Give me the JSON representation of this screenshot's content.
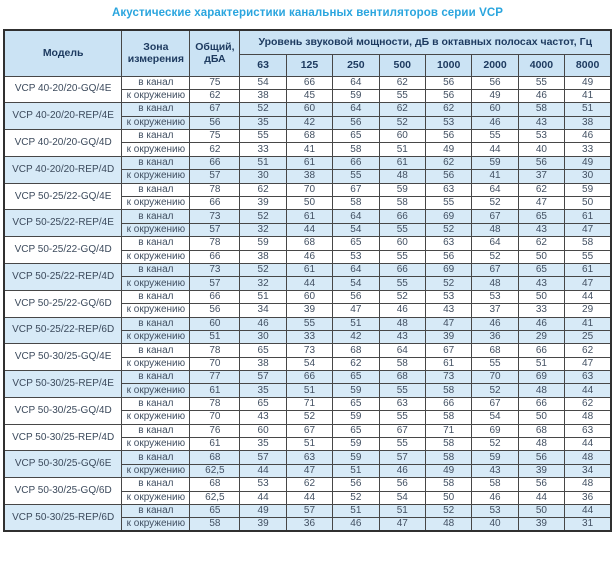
{
  "title": "Акустические характеристики канальных вентиляторов  серии VCP",
  "table": {
    "headers": {
      "model": "Модель",
      "zone": "Зона измерения",
      "total": "Общий, дБА",
      "octave": "Уровень звуковой мощности, дБ в октавных полосах частот, Гц",
      "frequencies": [
        "63",
        "125",
        "250",
        "500",
        "1000",
        "2000",
        "4000",
        "8000"
      ]
    },
    "colors": {
      "title_accent": "#2aa5de",
      "header_bg": "#cbe3f4",
      "shaded_row_bg": "#d7eaf7",
      "header_text": "#1d3a5f",
      "cell_text": "#425062"
    },
    "rows": [
      {
        "model": "VCP 40-20/20-GQ/4E",
        "shaded": false,
        "measurements": [
          {
            "zone": "в канал",
            "total": "75",
            "bands": [
              "54",
              "66",
              "64",
              "62",
              "56",
              "56",
              "55",
              "49"
            ]
          },
          {
            "zone": "к окружению",
            "total": "62",
            "bands": [
              "38",
              "45",
              "59",
              "55",
              "56",
              "49",
              "46",
              "41"
            ]
          }
        ]
      },
      {
        "model": "VCP 40-20/20-REP/4E",
        "shaded": true,
        "measurements": [
          {
            "zone": "в канал",
            "total": "67",
            "bands": [
              "52",
              "60",
              "64",
              "62",
              "62",
              "60",
              "58",
              "51"
            ]
          },
          {
            "zone": "к окружению",
            "total": "56",
            "bands": [
              "35",
              "42",
              "56",
              "52",
              "53",
              "46",
              "43",
              "38"
            ]
          }
        ]
      },
      {
        "model": "VCP 40-20/20-GQ/4D",
        "shaded": false,
        "measurements": [
          {
            "zone": "в канал",
            "total": "75",
            "bands": [
              "55",
              "68",
              "65",
              "60",
              "56",
              "55",
              "53",
              "46"
            ]
          },
          {
            "zone": "к окружению",
            "total": "62",
            "bands": [
              "33",
              "41",
              "58",
              "51",
              "49",
              "44",
              "40",
              "33"
            ]
          }
        ]
      },
      {
        "model": "VCP 40-20/20-REP/4D",
        "shaded": true,
        "measurements": [
          {
            "zone": "в канал",
            "total": "66",
            "bands": [
              "51",
              "61",
              "66",
              "61",
              "62",
              "59",
              "56",
              "49"
            ]
          },
          {
            "zone": "к окружению",
            "total": "57",
            "bands": [
              "30",
              "38",
              "55",
              "48",
              "56",
              "41",
              "37",
              "30"
            ]
          }
        ]
      },
      {
        "model": "VCP 50-25/22-GQ/4E",
        "shaded": false,
        "measurements": [
          {
            "zone": "в канал",
            "total": "78",
            "bands": [
              "62",
              "70",
              "67",
              "59",
              "63",
              "64",
              "62",
              "59"
            ]
          },
          {
            "zone": "к окружению",
            "total": "66",
            "bands": [
              "39",
              "50",
              "58",
              "58",
              "55",
              "52",
              "47",
              "50"
            ]
          }
        ]
      },
      {
        "model": "VCP 50-25/22-REP/4E",
        "shaded": true,
        "measurements": [
          {
            "zone": "в канал",
            "total": "73",
            "bands": [
              "52",
              "61",
              "64",
              "66",
              "69",
              "67",
              "65",
              "61"
            ]
          },
          {
            "zone": "к окружению",
            "total": "57",
            "bands": [
              "32",
              "44",
              "54",
              "55",
              "52",
              "48",
              "43",
              "47"
            ]
          }
        ]
      },
      {
        "model": "VCP 50-25/22-GQ/4D",
        "shaded": false,
        "measurements": [
          {
            "zone": "в канал",
            "total": "78",
            "bands": [
              "59",
              "68",
              "65",
              "60",
              "63",
              "64",
              "62",
              "58"
            ]
          },
          {
            "zone": "к окружению",
            "total": "66",
            "bands": [
              "38",
              "46",
              "53",
              "55",
              "56",
              "52",
              "50",
              "55"
            ]
          }
        ]
      },
      {
        "model": "VCP 50-25/22-REP/4D",
        "shaded": true,
        "measurements": [
          {
            "zone": "в канал",
            "total": "73",
            "bands": [
              "52",
              "61",
              "64",
              "66",
              "69",
              "67",
              "65",
              "61"
            ]
          },
          {
            "zone": "к окружению",
            "total": "57",
            "bands": [
              "32",
              "44",
              "54",
              "55",
              "52",
              "48",
              "43",
              "47"
            ]
          }
        ]
      },
      {
        "model": "VCP 50-25/22-GQ/6D",
        "shaded": false,
        "measurements": [
          {
            "zone": "в канал",
            "total": "66",
            "bands": [
              "51",
              "60",
              "56",
              "52",
              "53",
              "53",
              "50",
              "44"
            ]
          },
          {
            "zone": "к окружению",
            "total": "56",
            "bands": [
              "34",
              "39",
              "47",
              "46",
              "43",
              "37",
              "33",
              "29"
            ]
          }
        ]
      },
      {
        "model": "VCP 50-25/22-REP/6D",
        "shaded": true,
        "measurements": [
          {
            "zone": "в канал",
            "total": "60",
            "bands": [
              "46",
              "55",
              "51",
              "48",
              "47",
              "46",
              "46",
              "41"
            ]
          },
          {
            "zone": "к окружению",
            "total": "51",
            "bands": [
              "30",
              "33",
              "42",
              "43",
              "39",
              "36",
              "29",
              "25"
            ]
          }
        ]
      },
      {
        "model": "VCP 50-30/25-GQ/4E",
        "shaded": false,
        "measurements": [
          {
            "zone": "в канал",
            "total": "78",
            "bands": [
              "65",
              "73",
              "68",
              "64",
              "67",
              "68",
              "66",
              "62"
            ]
          },
          {
            "zone": "к окружению",
            "total": "70",
            "bands": [
              "38",
              "54",
              "62",
              "58",
              "61",
              "55",
              "51",
              "47"
            ]
          }
        ]
      },
      {
        "model": "VCP 50-30/25-REP/4E",
        "shaded": true,
        "measurements": [
          {
            "zone": "в канал",
            "total": "77",
            "bands": [
              "57",
              "66",
              "65",
              "68",
              "73",
              "70",
              "69",
              "63"
            ]
          },
          {
            "zone": "к окружению",
            "total": "61",
            "bands": [
              "35",
              "51",
              "59",
              "55",
              "58",
              "52",
              "48",
              "44"
            ]
          }
        ]
      },
      {
        "model": "VCP 50-30/25-GQ/4D",
        "shaded": false,
        "measurements": [
          {
            "zone": "в канал",
            "total": "78",
            "bands": [
              "65",
              "71",
              "65",
              "63",
              "66",
              "67",
              "66",
              "62"
            ]
          },
          {
            "zone": "к окружению",
            "total": "70",
            "bands": [
              "43",
              "52",
              "59",
              "55",
              "58",
              "54",
              "50",
              "48"
            ]
          }
        ]
      },
      {
        "model": "VCP 50-30/25-REP/4D",
        "shaded": false,
        "measurements": [
          {
            "zone": "в канал",
            "total": "76",
            "bands": [
              "60",
              "67",
              "65",
              "67",
              "71",
              "69",
              "68",
              "63"
            ]
          },
          {
            "zone": "к окружению",
            "total": "61",
            "bands": [
              "35",
              "51",
              "59",
              "55",
              "58",
              "52",
              "48",
              "44"
            ]
          }
        ]
      },
      {
        "model": "VCP 50-30/25-GQ/6E",
        "shaded": true,
        "measurements": [
          {
            "zone": "в канал",
            "total": "68",
            "bands": [
              "57",
              "63",
              "59",
              "57",
              "58",
              "59",
              "56",
              "48"
            ]
          },
          {
            "zone": "к окружению",
            "total": "62,5",
            "bands": [
              "44",
              "47",
              "51",
              "46",
              "49",
              "43",
              "39",
              "34"
            ]
          }
        ]
      },
      {
        "model": "VCP 50-30/25-GQ/6D",
        "shaded": false,
        "measurements": [
          {
            "zone": "в канал",
            "total": "68",
            "bands": [
              "53",
              "62",
              "56",
              "56",
              "58",
              "58",
              "56",
              "48"
            ]
          },
          {
            "zone": "к окружению",
            "total": "62,5",
            "bands": [
              "44",
              "44",
              "52",
              "54",
              "50",
              "46",
              "44",
              "36"
            ]
          }
        ]
      },
      {
        "model": "VCP 50-30/25-REP/6D",
        "shaded": true,
        "measurements": [
          {
            "zone": "в канал",
            "total": "65",
            "bands": [
              "49",
              "57",
              "51",
              "51",
              "52",
              "53",
              "50",
              "44"
            ]
          },
          {
            "zone": "к окружению",
            "total": "58",
            "bands": [
              "39",
              "36",
              "46",
              "47",
              "48",
              "40",
              "39",
              "31"
            ]
          }
        ]
      }
    ]
  }
}
